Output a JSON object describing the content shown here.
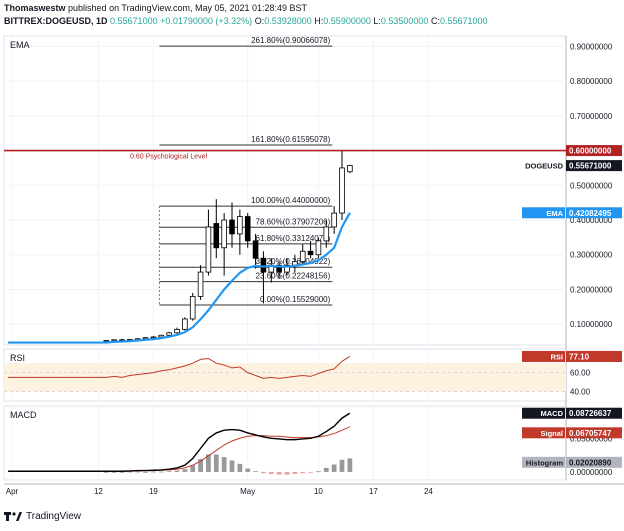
{
  "header": {
    "author": "Thomaswestw",
    "published_text": "published on TradingView.com, May 05, 2021 01:28:49 BST",
    "symbol": "BITTREX:DOGEUSD, 1D",
    "last": "0.55671000",
    "change": "+0.01790000 (+3.32%)",
    "o_label": "O:",
    "o": "0.53928000",
    "h_label": "H:",
    "h": "0.55900000",
    "l_label": "L:",
    "l": "0.53500000",
    "c_label": "C:",
    "c": "0.55671000"
  },
  "colors": {
    "up": "#ffffff",
    "down": "#000000",
    "ema": "#2196f3",
    "psych": "#b22222",
    "rsi": "#c0392b",
    "macd": "#000000",
    "signal": "#c0392b",
    "histogram": "#999999"
  },
  "price_pane": {
    "label": "EMA",
    "ylim": [
      0.04,
      0.93
    ],
    "axis_ticks": [
      "0.10000000",
      "0.20000000",
      "0.30000000",
      "0.40000000",
      "0.50000000",
      "0.60000000",
      "0.70000000",
      "0.80000000",
      "0.90000000"
    ],
    "axis_tick_values": [
      0.1,
      0.2,
      0.3,
      0.4,
      0.5,
      0.6,
      0.7,
      0.8,
      0.9
    ],
    "psych_level": {
      "value": 0.6,
      "label": "0.60 Psychological Level",
      "tag": "0.60000000"
    },
    "price_tag": {
      "name": "DOGEUSD",
      "value": "0.55671000",
      "y": 0.55671
    },
    "ema_tag": {
      "name": "EMA",
      "value": "0.42082495",
      "y": 0.42082
    },
    "fib_levels": [
      {
        "label": "261.80%(0.90066078)",
        "value": 0.90066
      },
      {
        "label": "161.80%(0.61595078)",
        "value": 0.61595
      },
      {
        "label": "100.00%(0.44000000)",
        "value": 0.44
      },
      {
        "label": "78.60%(0.37907206)",
        "value": 0.37907
      },
      {
        "label": "61.80%(0.33124078)",
        "value": 0.33124
      },
      {
        "label": "38.20%(0.26404922)",
        "value": 0.26405
      },
      {
        "label": "23.60%(0.22248156)",
        "value": 0.22248
      },
      {
        "label": "0.00%(0.15529000)",
        "value": 0.15529
      }
    ]
  },
  "rsi_pane": {
    "label": "RSI",
    "value": "77.10",
    "axis_ticks": [
      "60.00",
      "40.00"
    ],
    "axis_tick_values": [
      60,
      40
    ],
    "ylim": [
      30,
      85
    ]
  },
  "macd_pane": {
    "label": "MACD",
    "ylim": [
      -0.012,
      0.098
    ],
    "axis_ticks": [
      "0.05000000",
      "0.00000000"
    ],
    "axis_tick_values": [
      0.05,
      0.0
    ],
    "macd_tag": {
      "name": "MACD",
      "value": "0.08726637",
      "y": 0.08727
    },
    "signal_tag": {
      "name": "Signal",
      "value": "0.06705747",
      "y": 0.06706
    },
    "hist_tag": {
      "name": "Histogram",
      "value": "0.02020890",
      "y": 0.0202
    }
  },
  "x_axis": {
    "labels": [
      "Apr",
      "12",
      "19",
      "May",
      "10",
      "17",
      "24"
    ],
    "day_index": [
      0,
      11,
      18,
      30,
      39,
      46,
      53
    ],
    "day_count": 70
  },
  "chart_data": {
    "type": "candlestick",
    "candles": [
      {
        "o": 0.052,
        "h": 0.054,
        "l": 0.05,
        "c": 0.053
      },
      {
        "o": 0.053,
        "h": 0.056,
        "l": 0.052,
        "c": 0.055
      },
      {
        "o": 0.055,
        "h": 0.058,
        "l": 0.053,
        "c": 0.054
      },
      {
        "o": 0.054,
        "h": 0.057,
        "l": 0.052,
        "c": 0.056
      },
      {
        "o": 0.056,
        "h": 0.06,
        "l": 0.054,
        "c": 0.058
      },
      {
        "o": 0.058,
        "h": 0.062,
        "l": 0.056,
        "c": 0.061
      },
      {
        "o": 0.061,
        "h": 0.066,
        "l": 0.059,
        "c": 0.063
      },
      {
        "o": 0.063,
        "h": 0.07,
        "l": 0.061,
        "c": 0.068
      },
      {
        "o": 0.068,
        "h": 0.078,
        "l": 0.066,
        "c": 0.075
      },
      {
        "o": 0.075,
        "h": 0.09,
        "l": 0.072,
        "c": 0.085
      },
      {
        "o": 0.085,
        "h": 0.12,
        "l": 0.082,
        "c": 0.115
      },
      {
        "o": 0.115,
        "h": 0.19,
        "l": 0.11,
        "c": 0.18
      },
      {
        "o": 0.18,
        "h": 0.27,
        "l": 0.17,
        "c": 0.25
      },
      {
        "o": 0.25,
        "h": 0.43,
        "l": 0.24,
        "c": 0.38
      },
      {
        "o": 0.39,
        "h": 0.46,
        "l": 0.29,
        "c": 0.32
      },
      {
        "o": 0.32,
        "h": 0.42,
        "l": 0.24,
        "c": 0.4
      },
      {
        "o": 0.4,
        "h": 0.45,
        "l": 0.32,
        "c": 0.36
      },
      {
        "o": 0.36,
        "h": 0.43,
        "l": 0.3,
        "c": 0.41
      },
      {
        "o": 0.41,
        "h": 0.42,
        "l": 0.32,
        "c": 0.34
      },
      {
        "o": 0.34,
        "h": 0.36,
        "l": 0.26,
        "c": 0.29
      },
      {
        "o": 0.29,
        "h": 0.31,
        "l": 0.16,
        "c": 0.25
      },
      {
        "o": 0.25,
        "h": 0.29,
        "l": 0.22,
        "c": 0.27
      },
      {
        "o": 0.27,
        "h": 0.28,
        "l": 0.23,
        "c": 0.25
      },
      {
        "o": 0.25,
        "h": 0.29,
        "l": 0.24,
        "c": 0.27
      },
      {
        "o": 0.27,
        "h": 0.3,
        "l": 0.25,
        "c": 0.28
      },
      {
        "o": 0.28,
        "h": 0.33,
        "l": 0.27,
        "c": 0.31
      },
      {
        "o": 0.31,
        "h": 0.34,
        "l": 0.29,
        "c": 0.3
      },
      {
        "o": 0.3,
        "h": 0.35,
        "l": 0.29,
        "c": 0.34
      },
      {
        "o": 0.34,
        "h": 0.4,
        "l": 0.32,
        "c": 0.38
      },
      {
        "o": 0.38,
        "h": 0.44,
        "l": 0.36,
        "c": 0.42
      },
      {
        "o": 0.42,
        "h": 0.6,
        "l": 0.4,
        "c": 0.55
      },
      {
        "o": 0.539,
        "h": 0.559,
        "l": 0.535,
        "c": 0.557
      }
    ],
    "candle_start_index": 0,
    "candle_day_offset": 4,
    "ema": [
      0.047,
      0.049,
      0.05,
      0.051,
      0.053,
      0.055,
      0.057,
      0.06,
      0.064,
      0.069,
      0.077,
      0.091,
      0.114,
      0.14,
      0.17,
      0.2,
      0.225,
      0.248,
      0.262,
      0.268,
      0.266,
      0.268,
      0.266,
      0.266,
      0.268,
      0.272,
      0.276,
      0.284,
      0.3,
      0.32,
      0.38,
      0.42082
    ],
    "rsi": [
      55,
      56,
      55,
      57,
      58,
      59,
      60,
      62,
      63,
      65,
      67,
      70,
      74,
      75,
      70,
      68,
      65,
      66,
      60,
      57,
      54,
      55,
      54,
      55,
      56,
      57,
      56,
      59,
      62,
      64,
      72,
      77.1
    ],
    "macd": [
      0.001,
      0.001,
      0.001,
      0.0015,
      0.002,
      0.002,
      0.0025,
      0.003,
      0.004,
      0.006,
      0.01,
      0.02,
      0.035,
      0.05,
      0.058,
      0.062,
      0.063,
      0.062,
      0.058,
      0.055,
      0.052,
      0.05,
      0.049,
      0.048,
      0.048,
      0.049,
      0.05,
      0.053,
      0.06,
      0.068,
      0.08,
      0.08727
    ],
    "signal": [
      0.001,
      0.001,
      0.001,
      0.001,
      0.0015,
      0.002,
      0.002,
      0.0025,
      0.003,
      0.004,
      0.006,
      0.01,
      0.016,
      0.024,
      0.032,
      0.04,
      0.046,
      0.05,
      0.053,
      0.054,
      0.054,
      0.053,
      0.053,
      0.052,
      0.051,
      0.051,
      0.051,
      0.052,
      0.054,
      0.057,
      0.062,
      0.06706
    ],
    "histogram": [
      0,
      0,
      0,
      0.0005,
      0.0005,
      0,
      0.0005,
      0.0005,
      0.001,
      0.002,
      0.004,
      0.01,
      0.019,
      0.026,
      0.026,
      0.022,
      0.017,
      0.012,
      0.005,
      0.001,
      -0.002,
      -0.003,
      -0.004,
      -0.004,
      -0.003,
      -0.002,
      -0.001,
      0.001,
      0.006,
      0.011,
      0.018,
      0.0202
    ]
  }
}
